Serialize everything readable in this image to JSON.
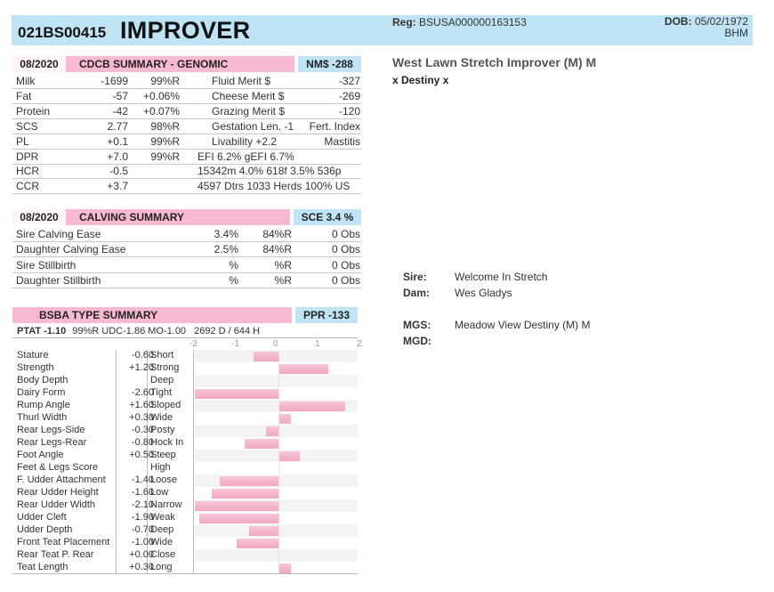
{
  "header": {
    "id": "021BS00415",
    "name": "IMPROVER",
    "reg_label": "Reg:",
    "reg_value": "BSUSA000000163153",
    "dob_label": "DOB:",
    "dob_value": "05/02/1972",
    "breed": "BHM"
  },
  "cdcb": {
    "date": "08/2020",
    "title": "CDCB SUMMARY - GENOMIC",
    "badge": "NM$ -288",
    "rows": [
      {
        "trait": "Milk",
        "value": "-1699",
        "rel": "99%R",
        "label": "Fluid Merit $",
        "val2": "-327"
      },
      {
        "trait": "Fat",
        "value": "-57",
        "rel": "+0.06%",
        "label": "Cheese Merit $",
        "val2": "-269"
      },
      {
        "trait": "Protein",
        "value": "-42",
        "rel": "+0.07%",
        "label": "Grazing Merit $",
        "val2": "-120"
      },
      {
        "trait": "SCS",
        "value": "2.77",
        "rel": "98%R",
        "label": "Gestation Len. -1",
        "val2": "Fert. Index"
      },
      {
        "trait": "PL",
        "value": "+0.1",
        "rel": "99%R",
        "label": "Livability  +2.2",
        "val2": "Mastitis"
      },
      {
        "trait": "DPR",
        "value": "+7.0",
        "rel": "99%R",
        "label": "EFI  6.2%  gEFI  6.7%",
        "val2": ""
      },
      {
        "trait": "HCR",
        "value": "-0.5",
        "rel": "",
        "label": "15342m  4.0%  618f  3.5%  536p",
        "val2": ""
      },
      {
        "trait": "CCR",
        "value": "+3.7",
        "rel": "",
        "label": "4597 Dtrs  1033 Herds  100% US",
        "val2": ""
      }
    ]
  },
  "calving": {
    "date": "08/2020",
    "title": "CALVING SUMMARY",
    "badge": "SCE 3.4 %",
    "rows": [
      {
        "trait": "Sire Calving Ease",
        "pct": "3.4%",
        "rel": "84%R",
        "obs": "0 Obs"
      },
      {
        "trait": "Daughter Calving Ease",
        "pct": "2.5%",
        "rel": "84%R",
        "obs": "0 Obs"
      },
      {
        "trait": "Sire Stillbirth",
        "pct": "%",
        "rel": "%R",
        "obs": "0 Obs"
      },
      {
        "trait": "Daughter Stillbirth",
        "pct": "%",
        "rel": "%R",
        "obs": "0 Obs"
      }
    ]
  },
  "type": {
    "title": "BSBA TYPE SUMMARY",
    "badge": "PPR -133",
    "ptat_label": "PTAT -1.10",
    "ptat_info": "99%R  UDC-1.86  MO-1.00",
    "herd_info": "2692 D /  644 H",
    "axis": [
      "-2",
      "-1",
      "0",
      "1",
      "2"
    ],
    "traits": [
      {
        "name": "Stature",
        "value": "-0.60",
        "desc": "Short",
        "v": -0.6
      },
      {
        "name": "Strength",
        "value": "+1.20",
        "desc": "Strong",
        "v": 1.2
      },
      {
        "name": "Body Depth",
        "value": "",
        "desc": "Deep",
        "v": 0
      },
      {
        "name": "Dairy Form",
        "value": "-2.60",
        "desc": "Tight",
        "v": -2.0
      },
      {
        "name": "Rump Angle",
        "value": "+1.60",
        "desc": "Sloped",
        "v": 1.6
      },
      {
        "name": "Thurl Width",
        "value": "+0.30",
        "desc": "Wide",
        "v": 0.3
      },
      {
        "name": "Rear Legs-Side",
        "value": "-0.30",
        "desc": "Posty",
        "v": -0.3
      },
      {
        "name": "Rear Legs-Rear",
        "value": "-0.80",
        "desc": "Hock In",
        "v": -0.8
      },
      {
        "name": "Foot Angle",
        "value": "+0.50",
        "desc": "Steep",
        "v": 0.5
      },
      {
        "name": "Feet & Legs Score",
        "value": "",
        "desc": "High",
        "v": 0
      },
      {
        "name": "F. Udder Attachment",
        "value": "-1.40",
        "desc": "Loose",
        "v": -1.4
      },
      {
        "name": "Rear Udder Height",
        "value": "-1.60",
        "desc": "Low",
        "v": -1.6
      },
      {
        "name": "Rear Udder Width",
        "value": "-2.10",
        "desc": "Narrow",
        "v": -2.0
      },
      {
        "name": "Udder Cleft",
        "value": "-1.90",
        "desc": "Weak",
        "v": -1.9
      },
      {
        "name": "Udder Depth",
        "value": "-0.70",
        "desc": "Deep",
        "v": -0.7
      },
      {
        "name": "Front Teat Placement",
        "value": "-1.00",
        "desc": "Wide",
        "v": -1.0
      },
      {
        "name": "Rear Teat P. Rear",
        "value": "+0.00",
        "desc": "Close",
        "v": 0
      },
      {
        "name": "Teat Length",
        "value": "+0.30",
        "desc": "Long",
        "v": 0.3
      }
    ]
  },
  "pedigree": {
    "full_name": "West Lawn Stretch Improver (M)  M",
    "cross": "x Destiny x",
    "sire_label": "Sire:",
    "sire": "Welcome In Stretch",
    "dam_label": "Dam:",
    "dam": "Wes Gladys",
    "mgs_label": "MGS:",
    "mgs": "Meadow View Destiny (M) M",
    "mgd_label": "MGD:",
    "mgd": ""
  }
}
